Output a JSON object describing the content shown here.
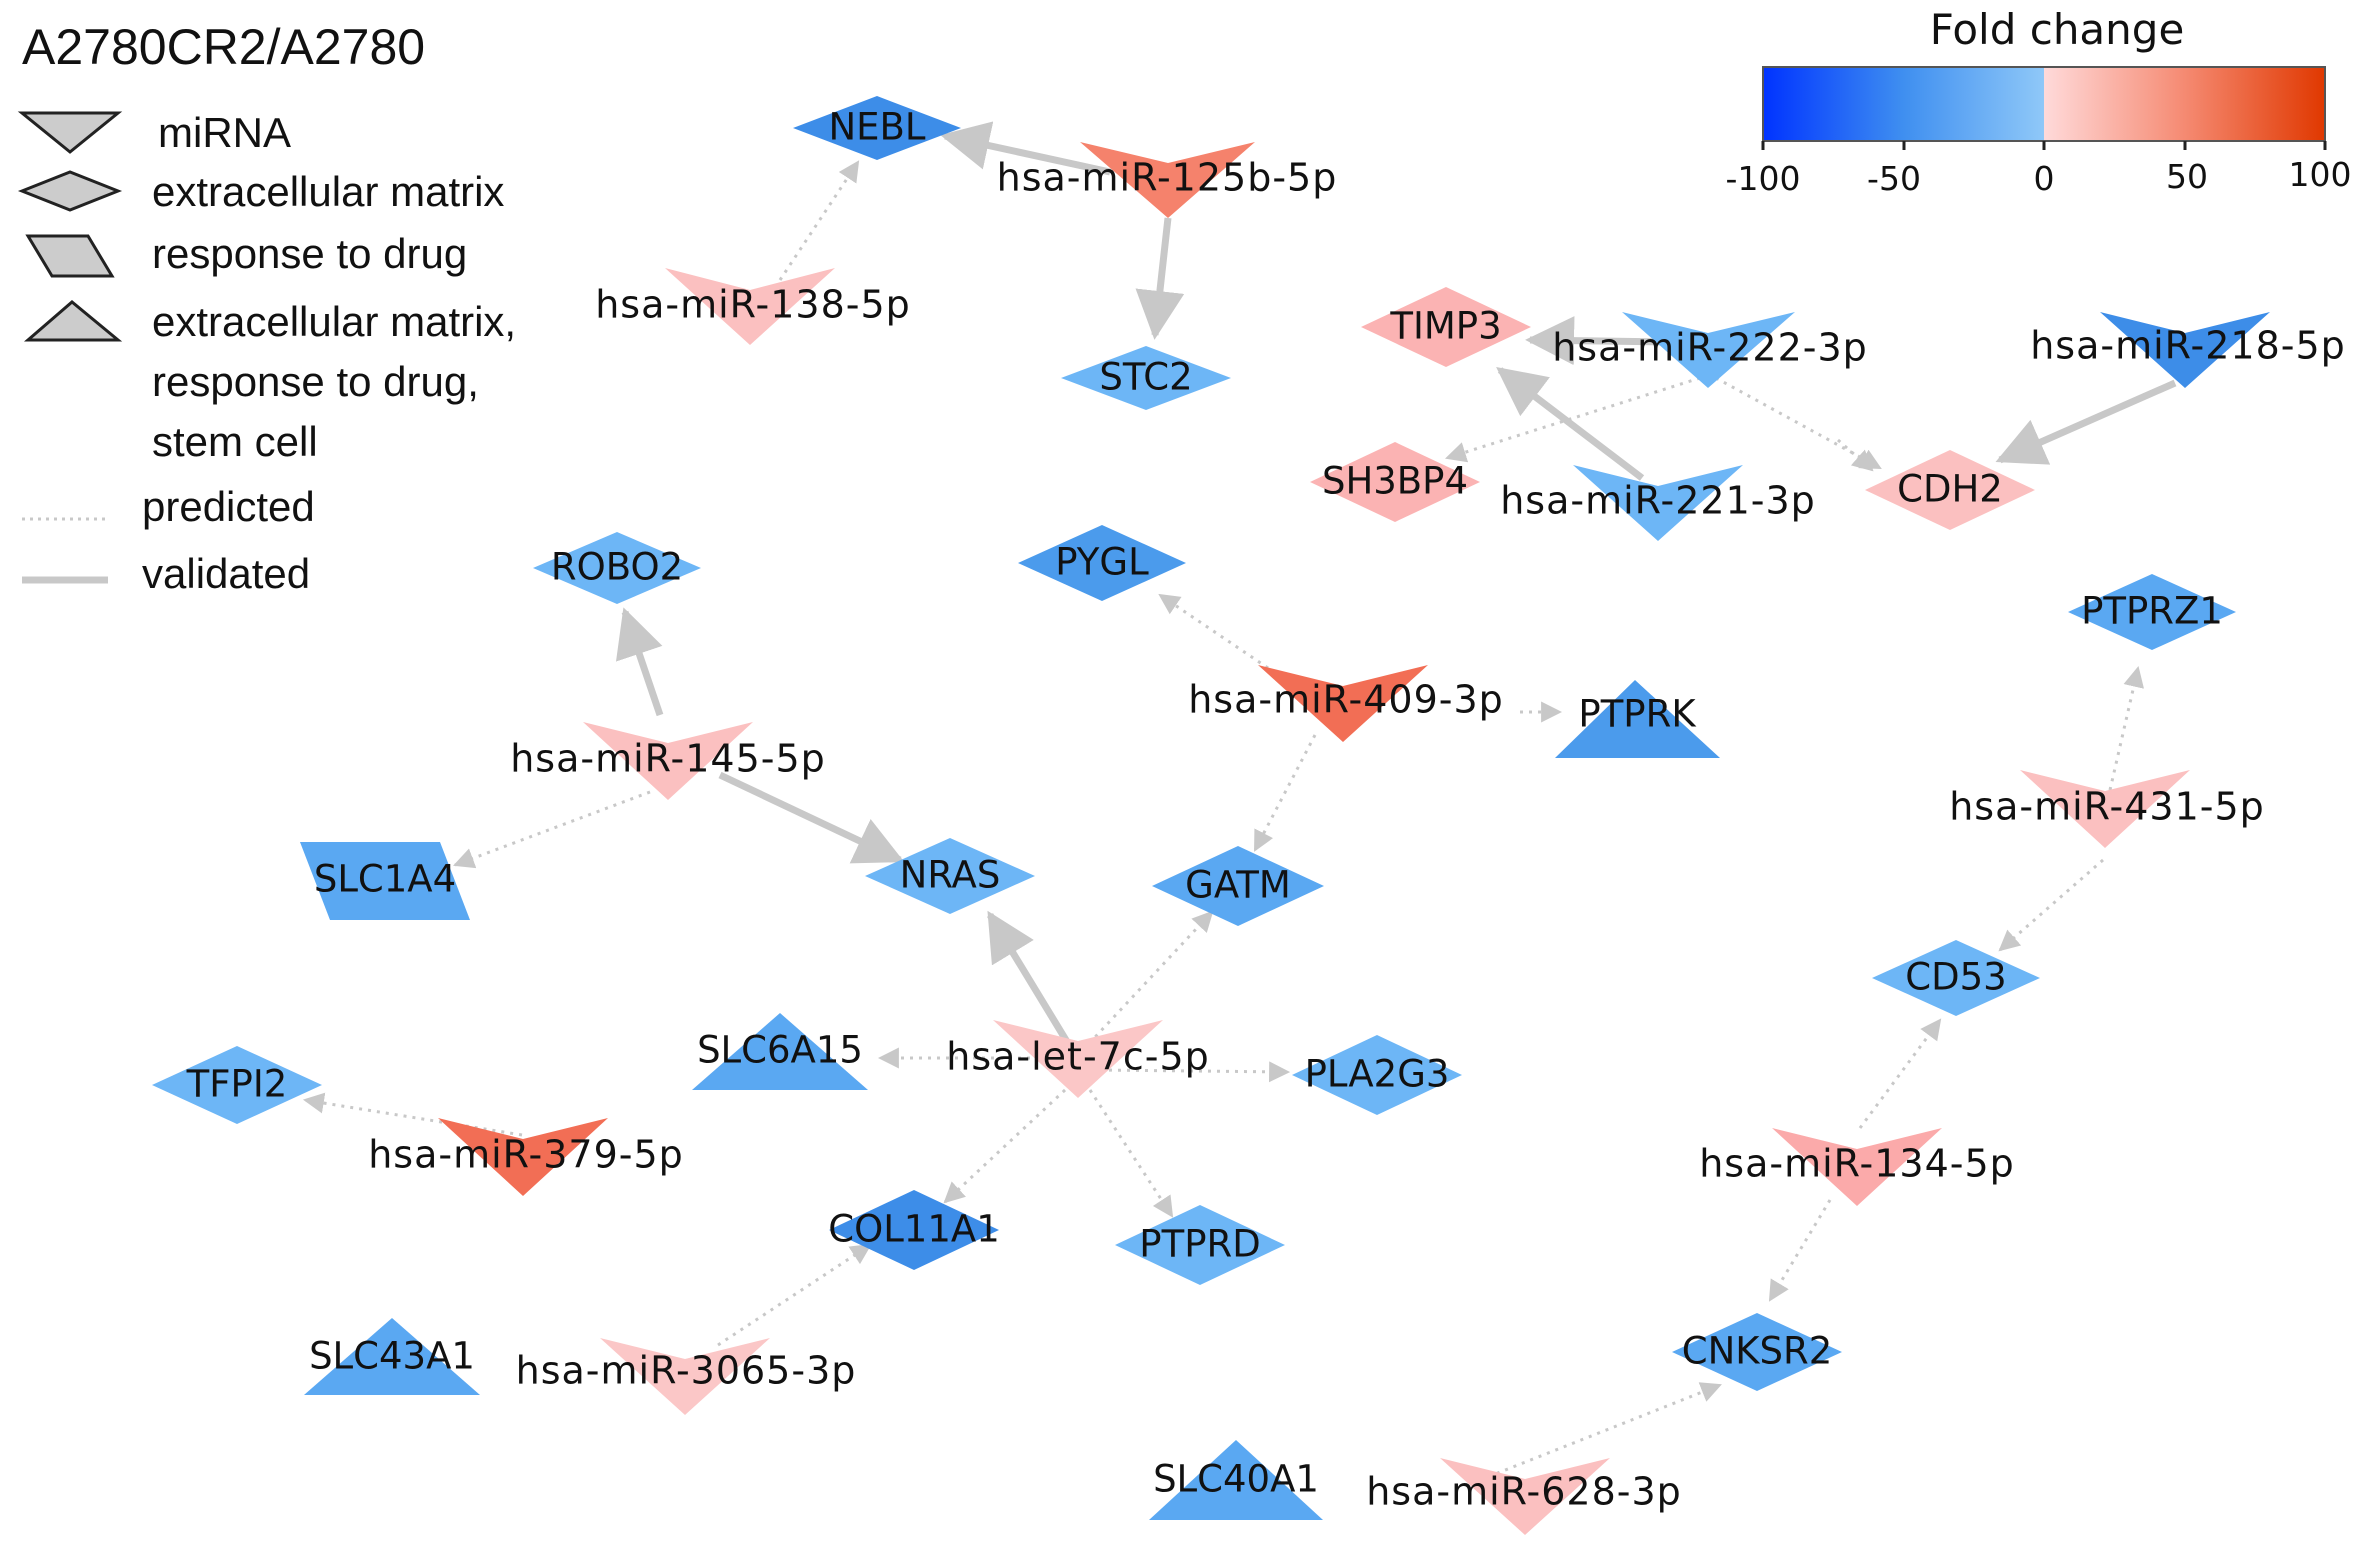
{
  "title": "A2780CR2/A2780",
  "legend": {
    "mirna": "miRNA",
    "ecm": "extracellular matrix",
    "drug": "response to drug",
    "multi_line1": "extracellular matrix,",
    "multi_line2": "response to drug,",
    "multi_line3": "stem cell",
    "predicted": "predicted",
    "validated": "validated"
  },
  "color_scale": {
    "title": "Fold change",
    "ticks": [
      "-100",
      "-50",
      "0",
      "50",
      "100"
    ],
    "colors": {
      "min": "#0033ff",
      "neg_mid": "#3f8ff0",
      "zero_neg": "#8fc8f8",
      "zero_pos": "#ffdada",
      "pos_mid": "#f58a72",
      "max": "#e03800"
    }
  },
  "nodes": {
    "nebl": "NEBL",
    "stc2": "STC2",
    "timp3": "TIMP3",
    "sh3bp4": "SH3BP4",
    "cdh2": "CDH2",
    "robo2": "ROBO2",
    "pygl": "PYGL",
    "ptprk": "PTPRK",
    "ptprz1": "PTPRZ1",
    "slc1a4": "SLC1A4",
    "nras": "NRAS",
    "gatm": "GATM",
    "cd53": "CD53",
    "slc6a15": "SLC6A15",
    "pla2g3": "PLA2G3",
    "tfpi2": "TFPI2",
    "col11a1": "COL11A1",
    "ptprd": "PTPRD",
    "slc43a1": "SLC43A1",
    "cnksr2": "CNKSR2",
    "slc40a1": "SLC40A1"
  },
  "mirnas": {
    "m125b": "hsa-miR-125b-5p",
    "m138": "hsa-miR-138-5p",
    "m222": "hsa-miR-222-3p",
    "m218": "hsa-miR-218-5p",
    "m221": "hsa-miR-221-3p",
    "m409": "hsa-miR-409-3p",
    "m145": "hsa-miR-145-5p",
    "m431": "hsa-miR-431-5p",
    "let7c": "hsa-let-7c-5p",
    "m379": "hsa-miR-379-5p",
    "m134": "hsa-miR-134-5p",
    "m3065": "hsa-miR-3065-3p",
    "m628": "hsa-miR-628-3p"
  }
}
